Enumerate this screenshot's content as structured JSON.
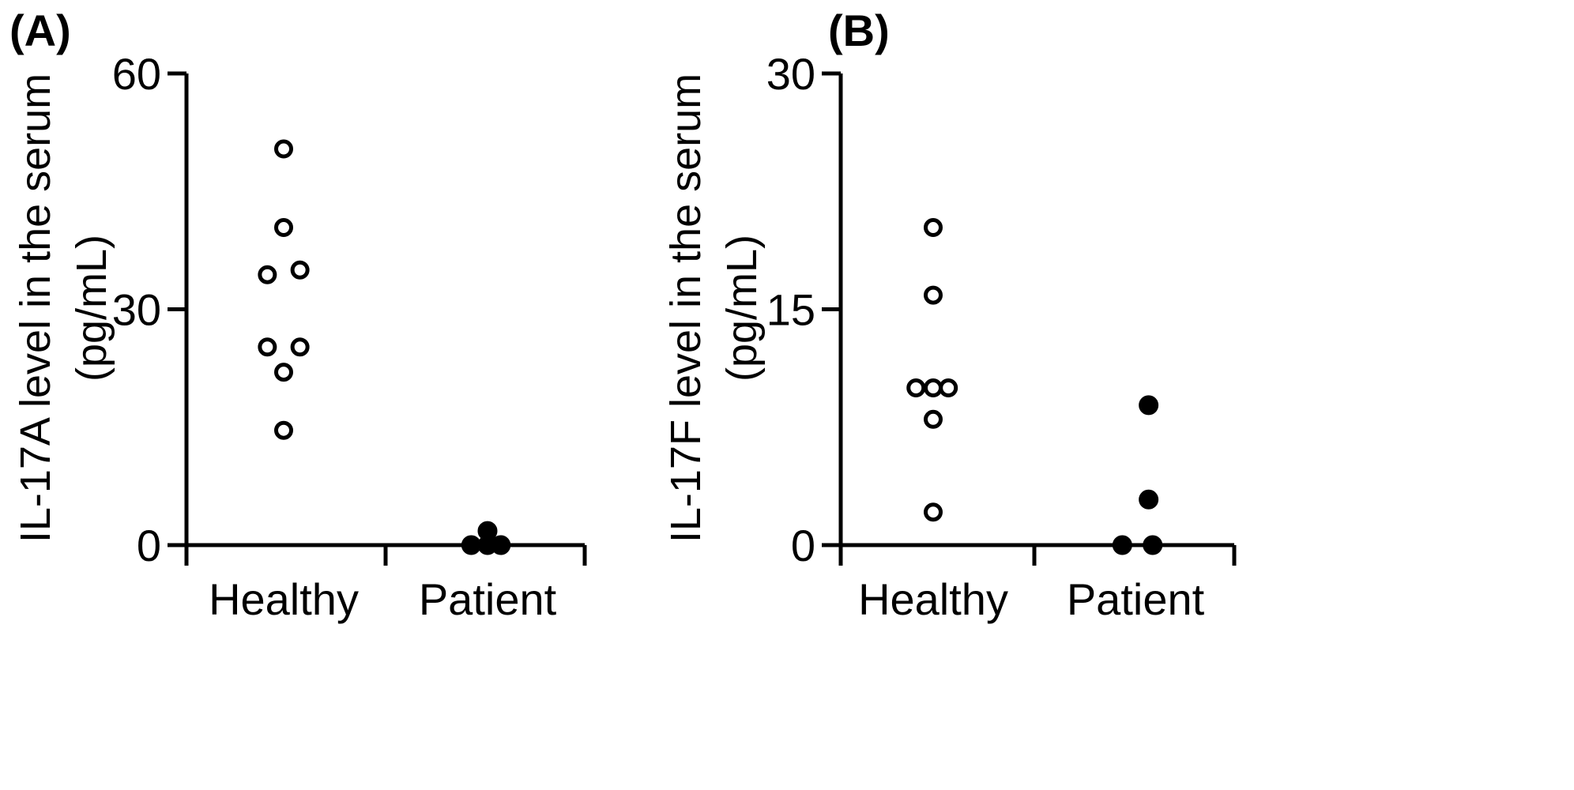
{
  "chart_data": [
    {
      "type": "scatter",
      "panel_label": "(A)",
      "title": "",
      "ylabel_lines": [
        "IL-17A level in the serum",
        "(pg/mL)"
      ],
      "xlabel": "",
      "categories": [
        "Healthy",
        "Patient"
      ],
      "ylim": [
        0,
        60
      ],
      "yticks": [
        0,
        30,
        60
      ],
      "ytick_labels": [
        "0",
        "30",
        "60"
      ],
      "grid": false,
      "legend": "none",
      "series": [
        {
          "category": "Healthy",
          "marker": "open-circle",
          "points": [
            {
              "x": 0,
              "y": 50.4
            },
            {
              "x": -0.16,
              "y": 34.4
            },
            {
              "x": 0,
              "y": 40.4
            },
            {
              "x": 0.16,
              "y": 35.0
            },
            {
              "x": -0.16,
              "y": 25.2
            },
            {
              "x": 0.16,
              "y": 25.2
            },
            {
              "x": 0,
              "y": 22.0
            },
            {
              "x": 0,
              "y": 14.6
            }
          ]
        },
        {
          "category": "Patient",
          "marker": "filled-circle",
          "points": [
            {
              "x": 0,
              "y": 1.8
            },
            {
              "x": -0.16,
              "y": 0
            },
            {
              "x": 0,
              "y": 0
            },
            {
              "x": 0.13,
              "y": 0
            }
          ]
        }
      ]
    },
    {
      "type": "scatter",
      "panel_label": "(B)",
      "title": "",
      "ylabel_lines": [
        "IL-17F level in the serum",
        "(pg/mL)"
      ],
      "xlabel": "",
      "categories": [
        "Healthy",
        "Patient"
      ],
      "ylim": [
        0,
        30
      ],
      "yticks": [
        0,
        15,
        30
      ],
      "ytick_labels": [
        "0",
        "15",
        "30"
      ],
      "grid": false,
      "legend": "none",
      "series": [
        {
          "category": "Healthy",
          "marker": "open-circle",
          "points": [
            {
              "x": 0,
              "y": 20.2
            },
            {
              "x": 0,
              "y": 15.9
            },
            {
              "x": -0.17,
              "y": 10.0
            },
            {
              "x": 0,
              "y": 10.0
            },
            {
              "x": 0.15,
              "y": 10.0
            },
            {
              "x": 0,
              "y": 8.0
            },
            {
              "x": 0,
              "y": 2.1
            }
          ]
        },
        {
          "category": "Patient",
          "marker": "filled-circle",
          "points": [
            {
              "x": 0.13,
              "y": 8.9
            },
            {
              "x": 0.13,
              "y": 2.9
            },
            {
              "x": -0.13,
              "y": 0
            },
            {
              "x": 0.17,
              "y": 0
            }
          ]
        }
      ]
    }
  ]
}
